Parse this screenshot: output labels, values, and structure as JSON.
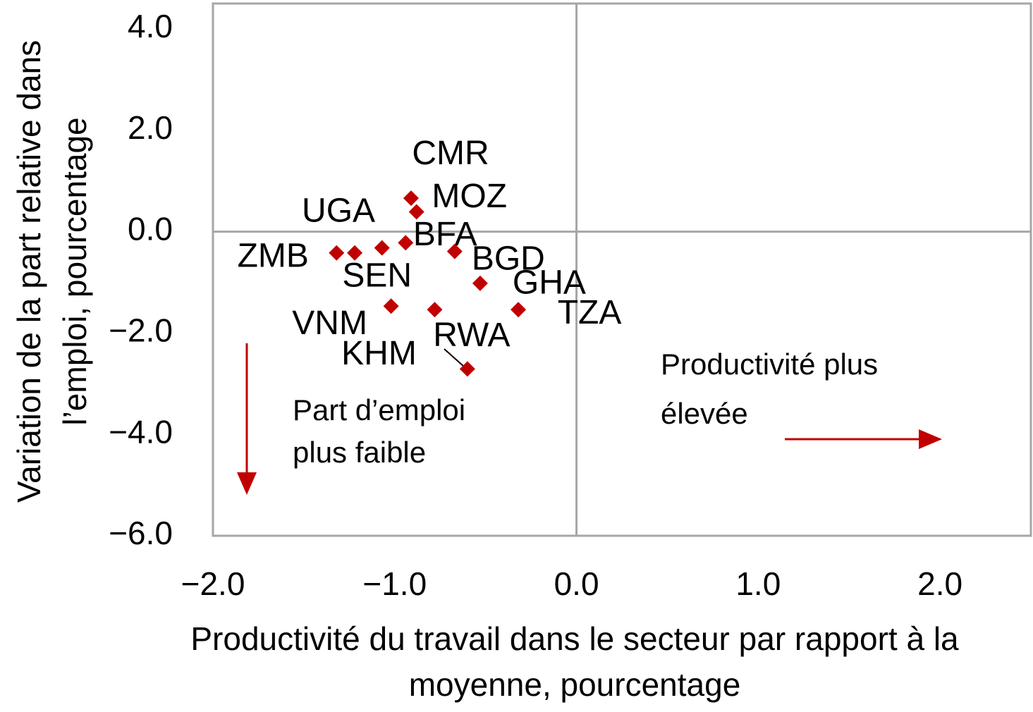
{
  "chart_data": {
    "type": "scatter",
    "xlabel": [
      "Productivité du travail dans le secteur par rapport à la",
      "moyenne, pourcentage"
    ],
    "ylabel": [
      "Variation de la part relative dans",
      "l’emploi, pourcentage"
    ],
    "x": [
      -1.32,
      -1.22,
      -1.07,
      -0.94,
      -0.91,
      -0.88,
      -0.67,
      -0.53,
      -0.32,
      -0.78,
      -1.02,
      -0.6
    ],
    "y": [
      -0.42,
      -0.42,
      -0.32,
      -0.22,
      0.66,
      0.39,
      -0.39,
      -1.02,
      -1.54,
      -1.54,
      -1.47,
      -2.71
    ],
    "point_labels": [
      "ZMB",
      "UGA",
      "SEN",
      "BFA",
      "CMR",
      "MOZ",
      "BGD",
      "GHA",
      "TZA",
      "KHM",
      "VNM",
      "RWA"
    ],
    "color": "#c00000",
    "xlim": [
      -2,
      2.5
    ],
    "ylim": [
      -6,
      4.5
    ],
    "xticks": [
      {
        "value": -2,
        "label": "−2.0"
      },
      {
        "value": -1,
        "label": "−1.0"
      },
      {
        "value": 0,
        "label": "0.0"
      },
      {
        "value": 1,
        "label": "1.0"
      },
      {
        "value": 2,
        "label": "2.0"
      }
    ],
    "yticks": [
      {
        "value": 4,
        "label": "4.0"
      },
      {
        "value": 2,
        "label": "2.0"
      },
      {
        "value": 0,
        "label": "0.0"
      },
      {
        "value": -2,
        "label": "−2.0"
      },
      {
        "value": -4,
        "label": "−4.0"
      },
      {
        "value": -6,
        "label": "−6.0"
      }
    ],
    "annotations": [
      "Productivité plus",
      "élevée",
      "Part d’emploi",
      "plus faible"
    ]
  }
}
